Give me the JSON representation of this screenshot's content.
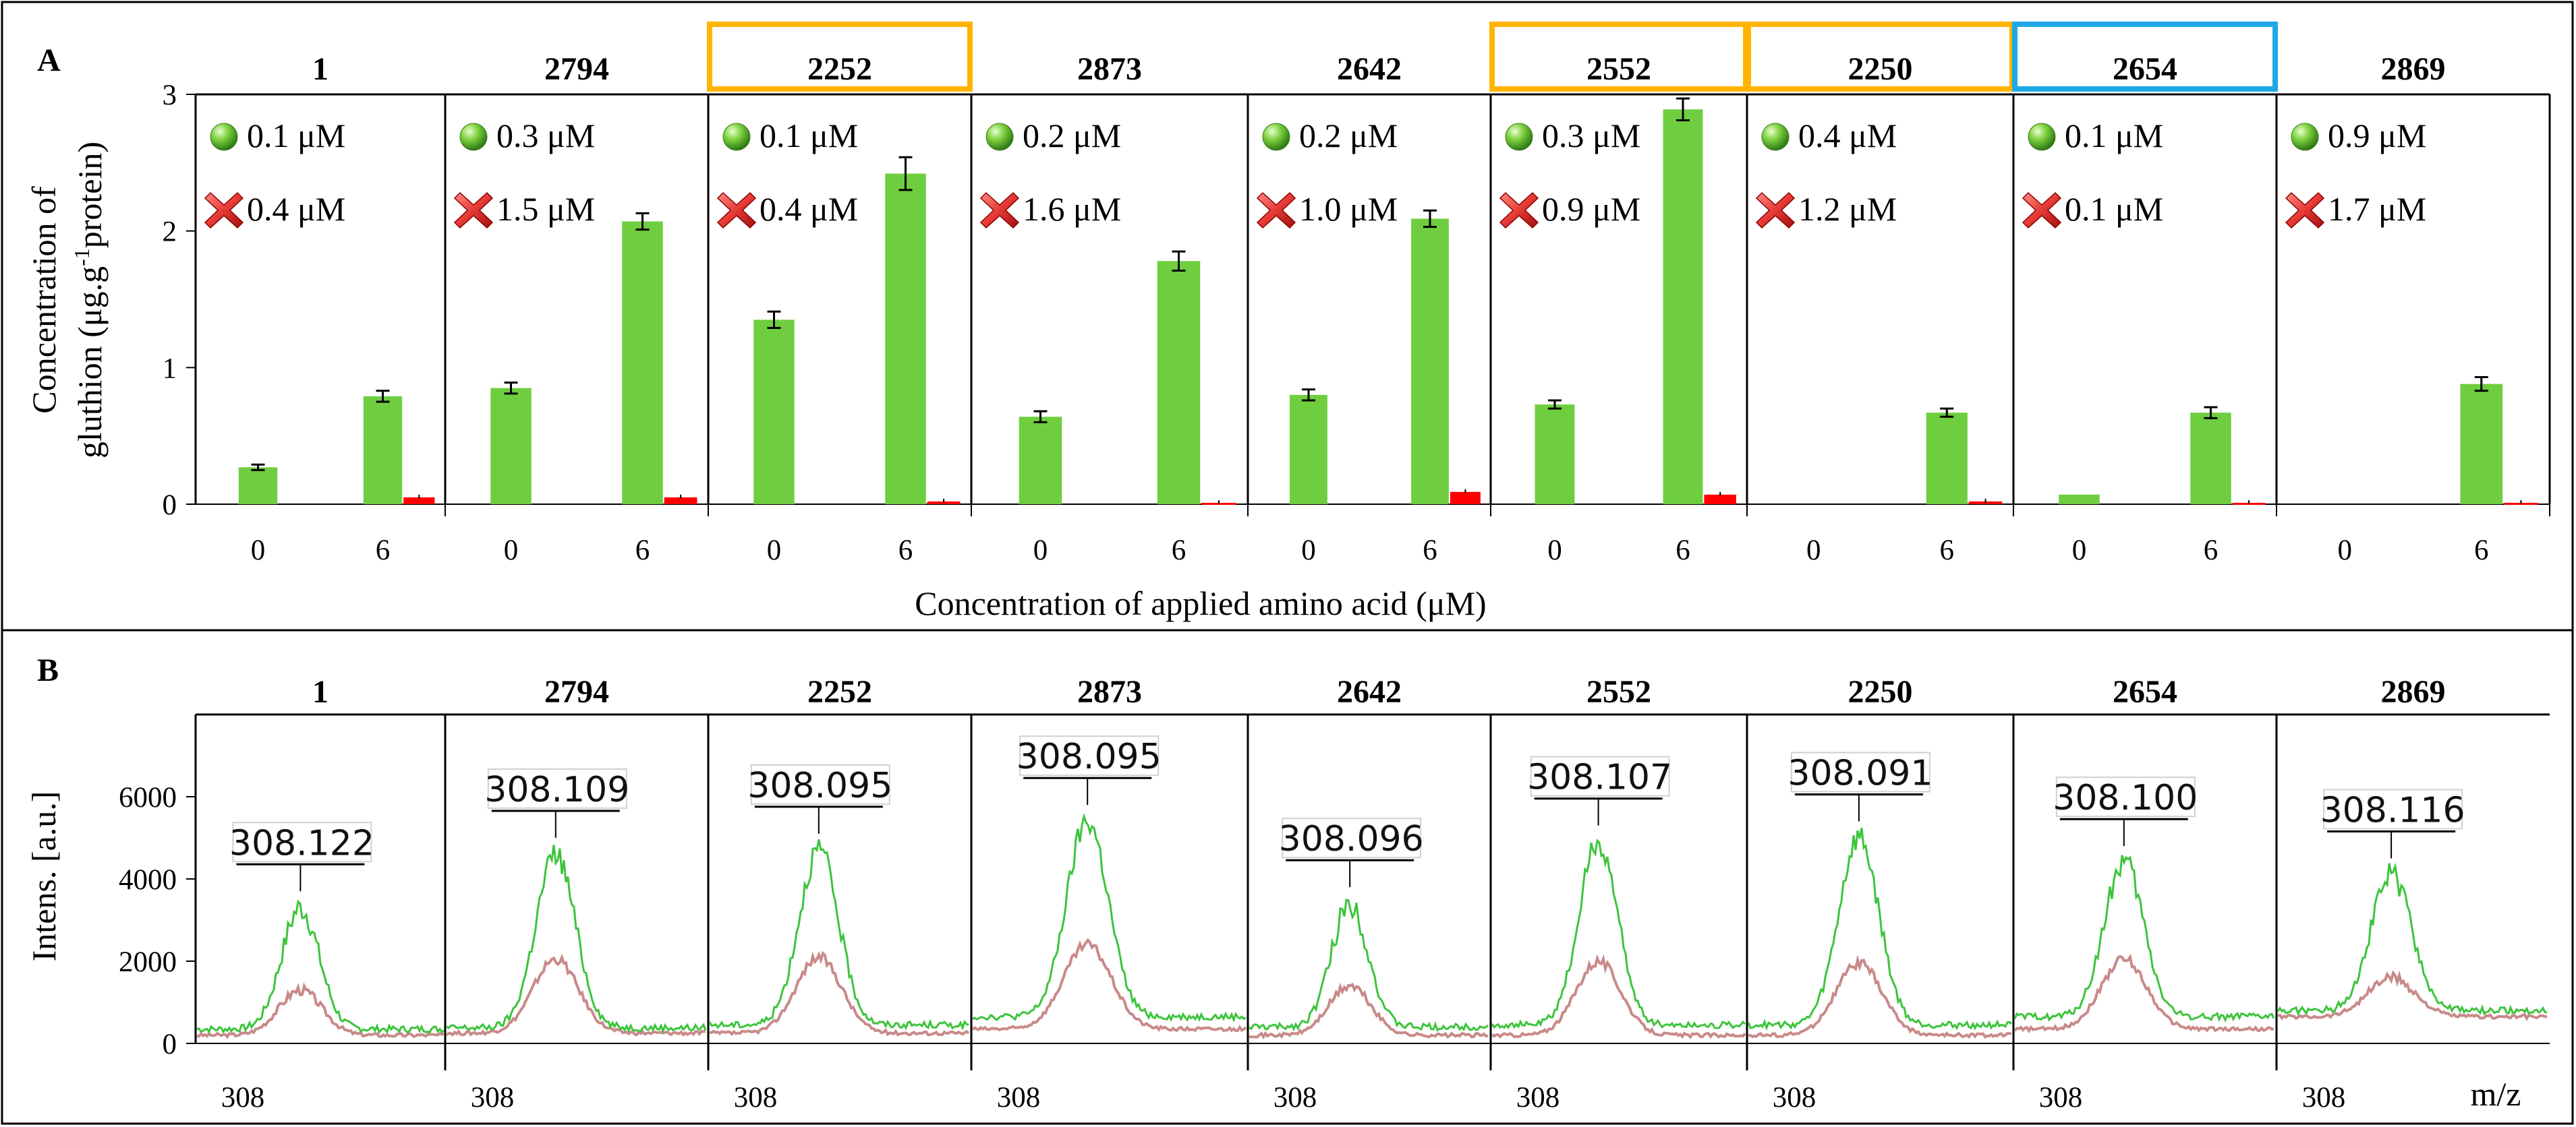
{
  "figure": {
    "panel_a_label": "A",
    "panel_b_label": "B"
  },
  "chart_data": [
    {
      "type": "bar",
      "panel": "A",
      "ylabel_line1": "Concentration  of",
      "ylabel_line2": "gluthion  (μg.g",
      "ylabel_sup": "-1",
      "ylabel_line2_end": "protein)",
      "xlabel": "Concentration  of applied  amino  acid (μM)",
      "ylim": [
        0,
        3
      ],
      "yticks": [
        "0",
        "1",
        "2",
        "3"
      ],
      "x_categories": [
        "0",
        "6"
      ],
      "legend_icons": [
        "green-sphere",
        "red-cross"
      ],
      "colors": {
        "control": "#6fce3f",
        "treated": "#ff0000",
        "orange_frame": "#ffb400",
        "blue_frame": "#1fa8e6"
      },
      "samples": [
        {
          "id": "1",
          "frame": "none",
          "green_label": "0.1 μM",
          "red_label": "0.4 μM",
          "green": [
            0.27,
            0.79
          ],
          "green_err": [
            0.02,
            0.04
          ],
          "red": [
            0.0,
            0.05
          ],
          "red_err": [
            0,
            0.01
          ]
        },
        {
          "id": "2794",
          "frame": "none",
          "green_label": "0.3 μM",
          "red_label": "1.5 μM",
          "green": [
            0.85,
            2.07
          ],
          "green_err": [
            0.04,
            0.06
          ],
          "red": [
            0.0,
            0.05
          ],
          "red_err": [
            0,
            0.01
          ]
        },
        {
          "id": "2252",
          "frame": "orange",
          "green_label": "0.1 μM",
          "red_label": "0.4 μM",
          "green": [
            1.35,
            2.42
          ],
          "green_err": [
            0.06,
            0.12
          ],
          "red": [
            0.0,
            0.02
          ],
          "red_err": [
            0,
            0
          ]
        },
        {
          "id": "2873",
          "frame": "none",
          "green_label": "0.2 μM",
          "red_label": "1.6 μM",
          "green": [
            0.64,
            1.78
          ],
          "green_err": [
            0.04,
            0.07
          ],
          "red": [
            0.0,
            0.01
          ],
          "red_err": [
            0,
            0
          ]
        },
        {
          "id": "2642",
          "frame": "none",
          "green_label": "0.2 μM",
          "red_label": "1.0 μM",
          "green": [
            0.8,
            2.09
          ],
          "green_err": [
            0.04,
            0.06
          ],
          "red": [
            0.0,
            0.09
          ],
          "red_err": [
            0,
            0.01
          ]
        },
        {
          "id": "2552",
          "frame": "orange",
          "green_label": "0.3 μM",
          "red_label": "0.9 μM",
          "green": [
            0.73,
            2.89
          ],
          "green_err": [
            0.03,
            0.08
          ],
          "red": [
            0.0,
            0.07
          ],
          "red_err": [
            0,
            0.01
          ]
        },
        {
          "id": "2250",
          "frame": "orange",
          "green_label": "0.4 μM",
          "red_label": "1.2 μM",
          "green": [
            0.0,
            0.67
          ],
          "green_err": [
            0,
            0.03
          ],
          "red": [
            0.0,
            0.02
          ],
          "red_err": [
            0,
            0
          ]
        },
        {
          "id": "2654",
          "frame": "blue",
          "green_label": "0.1 μM",
          "red_label": "0.1 μM",
          "green": [
            0.07,
            0.67
          ],
          "green_err": [
            0,
            0.04
          ],
          "red": [
            0.0,
            0.01
          ],
          "red_err": [
            0,
            0
          ]
        },
        {
          "id": "2869",
          "frame": "none",
          "green_label": "0.9 μM",
          "red_label": "1.7 μM",
          "green": [
            0.0,
            0.88
          ],
          "green_err": [
            0,
            0.05
          ],
          "red": [
            0.0,
            0.01
          ],
          "red_err": [
            0,
            0
          ]
        }
      ]
    },
    {
      "type": "line",
      "panel": "B",
      "ylabel": "Intens.  [a.u.]",
      "xlabel": "m/z",
      "x_tick": "308",
      "ylim": [
        0,
        8000
      ],
      "yticks": [
        "0",
        "2000",
        "4000",
        "6000"
      ],
      "series_colors": {
        "green_trace": "#3cc43c",
        "red_trace": "#c98a8a"
      },
      "samples": [
        {
          "id": "1",
          "peak_label": "308.122",
          "green_peak": 3300,
          "red_peak": 1300,
          "green_base": 350,
          "red_base": 200
        },
        {
          "id": "2794",
          "peak_label": "308.109",
          "green_peak": 4600,
          "red_peak": 2050,
          "green_base": 380,
          "red_base": 250
        },
        {
          "id": "2252",
          "peak_label": "308.095",
          "green_peak": 4700,
          "red_peak": 2100,
          "green_base": 450,
          "red_base": 250
        },
        {
          "id": "2873",
          "peak_label": "308.095",
          "green_peak": 5400,
          "red_peak": 2400,
          "green_base": 650,
          "red_base": 350
        },
        {
          "id": "2642",
          "peak_label": "308.096",
          "green_peak": 3400,
          "red_peak": 1400,
          "green_base": 400,
          "red_base": 200
        },
        {
          "id": "2552",
          "peak_label": "308.107",
          "green_peak": 4900,
          "red_peak": 2000,
          "green_base": 450,
          "red_base": 200
        },
        {
          "id": "2250",
          "peak_label": "308.091",
          "green_peak": 5000,
          "red_peak": 1950,
          "green_base": 450,
          "red_base": 200
        },
        {
          "id": "2654",
          "peak_label": "308.100",
          "green_peak": 4400,
          "red_peak": 2050,
          "green_base": 650,
          "red_base": 350
        },
        {
          "id": "2869",
          "peak_label": "308.116",
          "green_peak": 4100,
          "red_peak": 1600,
          "green_base": 800,
          "red_base": 650
        }
      ]
    }
  ]
}
